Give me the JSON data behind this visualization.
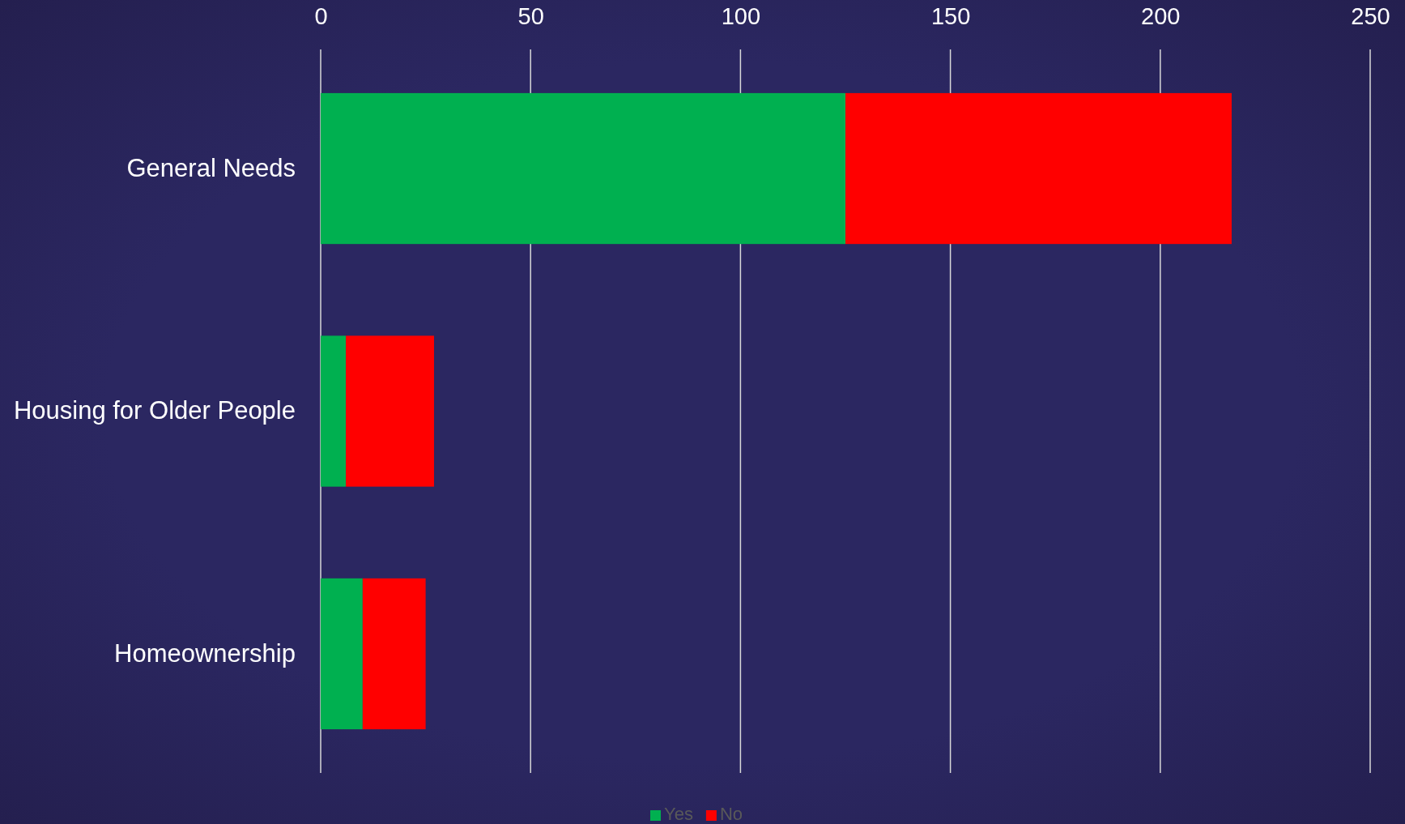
{
  "chart_data": {
    "type": "bar",
    "orientation": "horizontal",
    "stacked": true,
    "categories": [
      "General Needs",
      "Housing for Older People",
      "Homeownership"
    ],
    "series": [
      {
        "name": "Yes",
        "color": "#00b050",
        "values": [
          125,
          6,
          10
        ]
      },
      {
        "name": "No",
        "color": "#ff0000",
        "values": [
          92,
          21,
          15
        ]
      }
    ],
    "xlim": [
      0,
      250
    ],
    "xticks": [
      0,
      50,
      100,
      150,
      200,
      250
    ],
    "grid": "x",
    "legend": "bottom"
  }
}
